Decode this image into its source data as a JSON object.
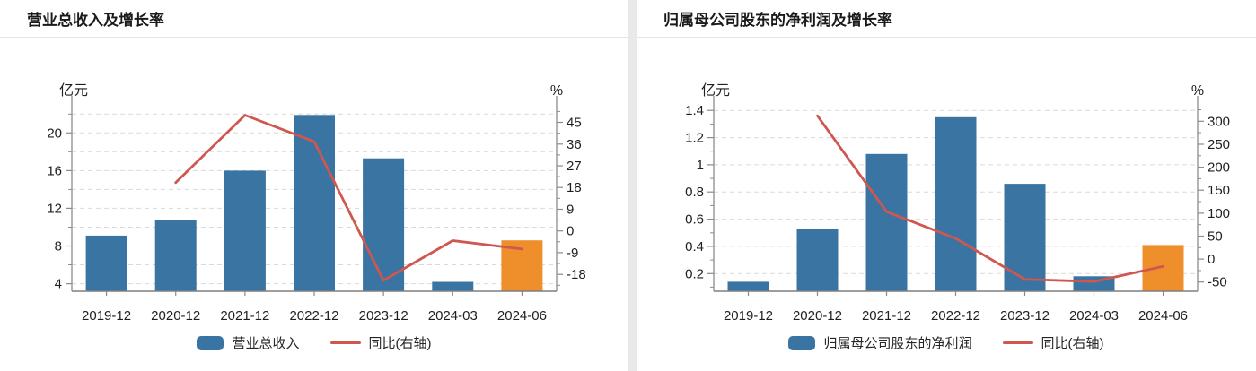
{
  "colors": {
    "bar_blue": "#3a74a2",
    "bar_orange": "#ef8f2c",
    "line_red": "#d0574f",
    "grid": "#d9d9d9",
    "axis": "#8c8c8c",
    "tick_text": "#1f1f1f",
    "title_text": "#1a1a1a",
    "divider": "#e9e9e9"
  },
  "panels": [
    {
      "title": "营业总收入及增长率",
      "legend": [
        {
          "kind": "bar",
          "label": "营业总收入"
        },
        {
          "kind": "line",
          "label": "同比(右轴)"
        }
      ]
    },
    {
      "title": "归属母公司股东的净利润及增长率",
      "legend": [
        {
          "kind": "bar",
          "label": "归属母公司股东的净利润"
        },
        {
          "kind": "line",
          "label": "同比(右轴)"
        }
      ]
    }
  ],
  "chart_data": [
    {
      "type": "bar+line",
      "title": "营业总收入及增长率",
      "categories": [
        "2019-12",
        "2020-12",
        "2021-12",
        "2022-12",
        "2023-12",
        "2024-03",
        "2024-06"
      ],
      "series": [
        {
          "name": "营业总收入",
          "type": "bar",
          "axis": "left",
          "unit": "亿元",
          "values": [
            9.1,
            10.8,
            16.0,
            21.9,
            17.3,
            4.2,
            8.6
          ],
          "colors": [
            "#3a74a2",
            "#3a74a2",
            "#3a74a2",
            "#3a74a2",
            "#3a74a2",
            "#3a74a2",
            "#ef8f2c"
          ]
        },
        {
          "name": "同比(右轴)",
          "type": "line",
          "axis": "right",
          "unit": "%",
          "values": [
            null,
            20,
            48,
            37,
            -20.5,
            -4,
            -7.5
          ],
          "color": "#d0574f"
        }
      ],
      "left_axis": {
        "label": "亿元",
        "ticks": [
          4,
          8,
          12,
          16,
          20
        ],
        "minor_step": 2,
        "lim": [
          3.2,
          22.5
        ]
      },
      "right_axis": {
        "label": "%",
        "ticks": [
          -18,
          -9,
          0,
          9,
          18,
          27,
          36,
          45
        ],
        "minor_step": 4.5,
        "lim": [
          -25,
          50.4
        ]
      },
      "grid_values": [
        4,
        6,
        8,
        10,
        12,
        14,
        16,
        18,
        20,
        22
      ],
      "grid_style": "dashed",
      "legend_position": "bottom"
    },
    {
      "type": "bar+line",
      "title": "归属母公司股东的净利润及增长率",
      "categories": [
        "2019-12",
        "2020-12",
        "2021-12",
        "2022-12",
        "2023-12",
        "2024-03",
        "2024-06"
      ],
      "series": [
        {
          "name": "归属母公司股东的净利润",
          "type": "bar",
          "axis": "left",
          "unit": "亿元",
          "values": [
            0.14,
            0.53,
            1.08,
            1.35,
            0.86,
            0.18,
            0.41
          ],
          "colors": [
            "#3a74a2",
            "#3a74a2",
            "#3a74a2",
            "#3a74a2",
            "#3a74a2",
            "#3a74a2",
            "#ef8f2c"
          ]
        },
        {
          "name": "同比(右轴)",
          "type": "line",
          "axis": "right",
          "unit": "%",
          "values": [
            null,
            312,
            103,
            45,
            -44,
            -49,
            -16
          ],
          "color": "#d0574f"
        }
      ],
      "left_axis": {
        "label": "亿元",
        "ticks": [
          0.2,
          0.4,
          0.6,
          0.8,
          1,
          1.2,
          1.4
        ],
        "minor_step": 0.1,
        "lim": [
          0.07,
          1.408
        ]
      },
      "right_axis": {
        "label": "%",
        "ticks": [
          -50,
          0,
          50,
          100,
          150,
          200,
          250,
          300
        ],
        "minor_step": 25,
        "lim": [
          -70,
          326
        ]
      },
      "grid_values": [
        0.2,
        0.4,
        0.6,
        0.8,
        1,
        1.2,
        1.4
      ],
      "grid_style": "dashed",
      "legend_position": "bottom"
    }
  ]
}
